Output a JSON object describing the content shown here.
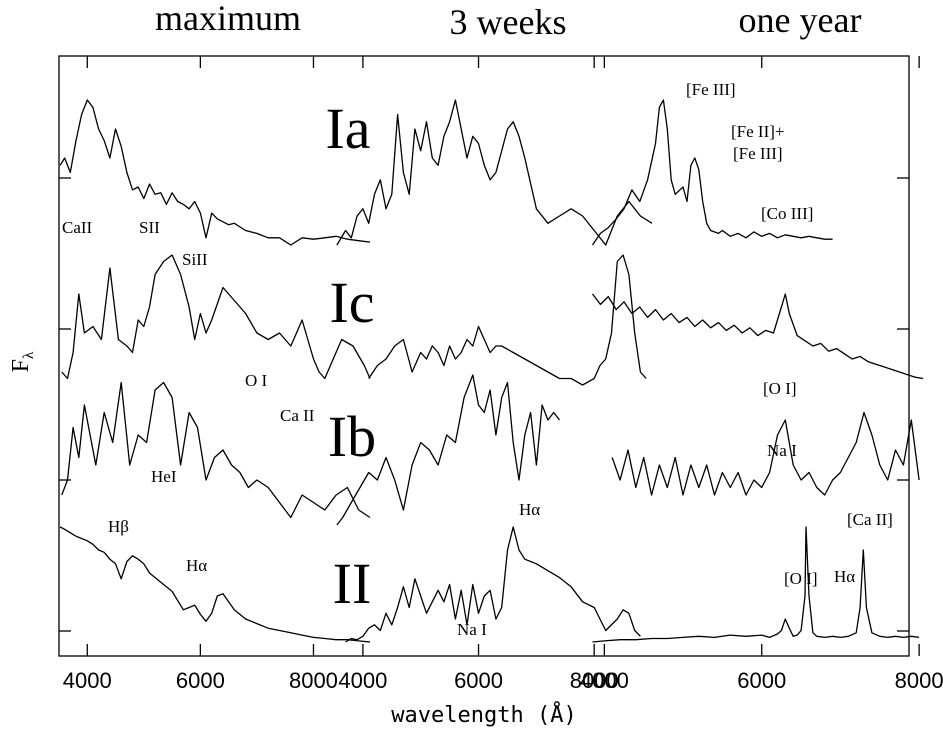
{
  "chart_data": {
    "type": "line",
    "xlabel": "wavelength (Å)",
    "ylabel_main": "F",
    "ylabel_sub": "λ",
    "grid": false,
    "columns": [
      {
        "title": "maximum",
        "xlim": [
          3500,
          9000
        ],
        "ticks": [
          4000,
          6000,
          8000
        ]
      },
      {
        "title": "3 weeks",
        "xlim": [
          3500,
          9000
        ],
        "ticks": [
          4000,
          6000,
          8000
        ]
      },
      {
        "title": "one year",
        "xlim": [
          3500,
          8100
        ],
        "ticks": [
          4000,
          6000,
          8000
        ]
      }
    ],
    "types": [
      {
        "name": "Ia"
      },
      {
        "name": "Ic"
      },
      {
        "name": "Ib"
      },
      {
        "name": "II"
      }
    ],
    "series": [
      {
        "type": "Ia",
        "col": 0,
        "x": [
          3520,
          3600,
          3700,
          3800,
          3900,
          4000,
          4100,
          4200,
          4300,
          4400,
          4500,
          4600,
          4700,
          4800,
          4900,
          5000,
          5100,
          5200,
          5300,
          5400,
          5500,
          5600,
          5700,
          5800,
          5900,
          6000,
          6100,
          6200,
          6300,
          6400,
          6500,
          6600,
          6800,
          7000,
          7200,
          7400,
          7600,
          7800,
          8000,
          8200,
          8400,
          8600,
          8800,
          9000
        ],
        "y": [
          0.55,
          0.6,
          0.5,
          0.72,
          0.9,
          1.0,
          0.95,
          0.8,
          0.72,
          0.6,
          0.8,
          0.68,
          0.5,
          0.38,
          0.4,
          0.32,
          0.42,
          0.35,
          0.36,
          0.28,
          0.36,
          0.3,
          0.28,
          0.25,
          0.3,
          0.22,
          0.05,
          0.22,
          0.18,
          0.16,
          0.14,
          0.15,
          0.1,
          0.08,
          0.05,
          0.05,
          0.0,
          0.05,
          0.04,
          0.05,
          0.06,
          0.04,
          0.03,
          0.02
        ]
      },
      {
        "type": "Ia",
        "col": 1,
        "x": [
          3550,
          3700,
          3800,
          3900,
          4000,
          4100,
          4200,
          4300,
          4400,
          4500,
          4600,
          4700,
          4800,
          4900,
          5000,
          5100,
          5200,
          5300,
          5400,
          5500,
          5600,
          5700,
          5800,
          5900,
          6000,
          6100,
          6200,
          6300,
          6400,
          6500,
          6600,
          6700,
          6800,
          7000,
          7200,
          7400,
          7600,
          7800,
          8000,
          8200,
          8400,
          8600,
          8800,
          9000
        ],
        "y": [
          0.0,
          0.1,
          0.05,
          0.2,
          0.25,
          0.15,
          0.35,
          0.45,
          0.25,
          0.35,
          0.9,
          0.5,
          0.35,
          0.8,
          0.65,
          0.85,
          0.6,
          0.55,
          0.75,
          0.85,
          1.0,
          0.8,
          0.6,
          0.75,
          0.7,
          0.55,
          0.45,
          0.5,
          0.65,
          0.8,
          0.85,
          0.75,
          0.6,
          0.25,
          0.15,
          0.2,
          0.25,
          0.2,
          0.1,
          0.0,
          0.2,
          0.3,
          0.2,
          0.15
        ]
      },
      {
        "type": "Ia",
        "col": 2,
        "x": [
          3850,
          3950,
          4050,
          4150,
          4250,
          4350,
          4450,
          4550,
          4650,
          4700,
          4750,
          4800,
          4850,
          4900,
          5000,
          5050,
          5100,
          5150,
          5200,
          5250,
          5300,
          5350,
          5450,
          5500,
          5600,
          5700,
          5800,
          5900,
          6000,
          6100,
          6200,
          6300,
          6400,
          6500,
          6600,
          6700,
          6800,
          6900
        ],
        "y": [
          0.0,
          0.08,
          0.12,
          0.18,
          0.25,
          0.38,
          0.3,
          0.45,
          0.7,
          0.95,
          1.0,
          0.8,
          0.45,
          0.35,
          0.4,
          0.3,
          0.55,
          0.6,
          0.52,
          0.3,
          0.15,
          0.1,
          0.08,
          0.1,
          0.06,
          0.08,
          0.05,
          0.09,
          0.06,
          0.08,
          0.05,
          0.07,
          0.06,
          0.05,
          0.06,
          0.05,
          0.04,
          0.04
        ]
      },
      {
        "type": "Ic",
        "col": 0,
        "x": [
          3550,
          3650,
          3750,
          3850,
          3950,
          4100,
          4250,
          4400,
          4550,
          4700,
          4800,
          4900,
          5000,
          5100,
          5200,
          5350,
          5500,
          5650,
          5800,
          5900,
          6000,
          6100,
          6200,
          6400,
          6600,
          6800,
          7000,
          7200,
          7400,
          7600,
          7700,
          7800,
          7900,
          8000,
          8100,
          8200,
          8300,
          8500,
          8700,
          8900,
          9000
        ],
        "y": [
          0.1,
          0.05,
          0.25,
          0.7,
          0.4,
          0.45,
          0.35,
          0.9,
          0.35,
          0.3,
          0.25,
          0.5,
          0.45,
          0.6,
          0.85,
          0.95,
          1.0,
          0.85,
          0.6,
          0.35,
          0.55,
          0.4,
          0.5,
          0.75,
          0.65,
          0.55,
          0.4,
          0.35,
          0.4,
          0.3,
          0.4,
          0.5,
          0.35,
          0.2,
          0.1,
          0.05,
          0.15,
          0.35,
          0.3,
          0.15,
          0.05
        ]
      },
      {
        "type": "Ic",
        "col": 1,
        "x": [
          4100,
          4250,
          4400,
          4550,
          4700,
          4850,
          5000,
          5100,
          5200,
          5300,
          5400,
          5500,
          5600,
          5700,
          5800,
          5900,
          6000,
          6100,
          6200,
          6300,
          6400,
          6600,
          6800,
          7000,
          7200,
          7400,
          7600,
          7800,
          8000,
          8100,
          8200,
          8300,
          8400,
          8500,
          8600,
          8700,
          8800,
          8900
        ],
        "y": [
          0.05,
          0.15,
          0.2,
          0.3,
          0.35,
          0.1,
          0.25,
          0.2,
          0.3,
          0.25,
          0.15,
          0.3,
          0.2,
          0.25,
          0.35,
          0.3,
          0.45,
          0.35,
          0.25,
          0.3,
          0.3,
          0.25,
          0.2,
          0.15,
          0.1,
          0.05,
          0.05,
          0.0,
          0.05,
          0.15,
          0.2,
          0.4,
          0.95,
          1.0,
          0.85,
          0.4,
          0.1,
          0.05
        ]
      },
      {
        "type": "Ic",
        "col": 2,
        "x": [
          3850,
          3950,
          4050,
          4150,
          4250,
          4350,
          4450,
          4550,
          4650,
          4750,
          4850,
          4950,
          5050,
          5150,
          5250,
          5350,
          5450,
          5550,
          5650,
          5750,
          5850,
          5950,
          6050,
          6150,
          6250,
          6300,
          6350,
          6450,
          6550,
          6650,
          6750,
          6850,
          6950,
          7050,
          7150,
          7250,
          7350,
          7450,
          7550,
          7650,
          7750,
          7850,
          7950,
          8050
        ],
        "y": [
          0.7,
          0.62,
          0.68,
          0.58,
          0.64,
          0.55,
          0.6,
          0.52,
          0.58,
          0.5,
          0.55,
          0.48,
          0.52,
          0.45,
          0.5,
          0.44,
          0.48,
          0.42,
          0.46,
          0.4,
          0.44,
          0.38,
          0.42,
          0.4,
          0.6,
          0.7,
          0.55,
          0.38,
          0.34,
          0.3,
          0.32,
          0.26,
          0.28,
          0.24,
          0.2,
          0.22,
          0.18,
          0.16,
          0.14,
          0.12,
          0.1,
          0.08,
          0.06,
          0.05
        ]
      },
      {
        "type": "Ib",
        "col": 0,
        "x": [
          3550,
          3650,
          3750,
          3850,
          3950,
          4050,
          4150,
          4300,
          4450,
          4600,
          4750,
          4900,
          5050,
          5200,
          5350,
          5500,
          5650,
          5800,
          5950,
          6100,
          6250,
          6400,
          6550,
          6700,
          6850,
          7000,
          7200,
          7400,
          7600,
          7800,
          8000,
          8200,
          8400,
          8600,
          8800,
          9000
        ],
        "y": [
          0.2,
          0.3,
          0.65,
          0.45,
          0.8,
          0.6,
          0.4,
          0.75,
          0.55,
          0.95,
          0.4,
          0.6,
          0.55,
          0.9,
          0.95,
          0.85,
          0.4,
          0.75,
          0.65,
          0.3,
          0.45,
          0.5,
          0.4,
          0.35,
          0.25,
          0.3,
          0.25,
          0.15,
          0.05,
          0.2,
          0.15,
          0.1,
          0.2,
          0.25,
          0.1,
          0.05
        ]
      },
      {
        "type": "Ib",
        "col": 1,
        "x": [
          3550,
          3650,
          3800,
          3950,
          4100,
          4250,
          4400,
          4550,
          4700,
          4850,
          5000,
          5150,
          5300,
          5450,
          5600,
          5750,
          5900,
          6000,
          6100,
          6200,
          6300,
          6400,
          6500,
          6600,
          6700,
          6800,
          6900,
          7000,
          7100,
          7200,
          7300,
          7400
        ],
        "y": [
          0.0,
          0.05,
          0.15,
          0.25,
          0.35,
          0.3,
          0.45,
          0.3,
          0.1,
          0.4,
          0.55,
          0.5,
          0.4,
          0.6,
          0.55,
          0.85,
          1.0,
          0.8,
          0.75,
          0.9,
          0.6,
          0.85,
          0.95,
          0.55,
          0.3,
          0.6,
          0.75,
          0.4,
          0.8,
          0.7,
          0.75,
          0.7
        ]
      },
      {
        "type": "Ib",
        "col": 2,
        "x": [
          4100,
          4200,
          4300,
          4400,
          4500,
          4600,
          4700,
          4800,
          4900,
          5000,
          5100,
          5200,
          5300,
          5400,
          5500,
          5600,
          5700,
          5800,
          5900,
          6000,
          6100,
          6200,
          6300,
          6400,
          6500,
          6600,
          6700,
          6800,
          6900,
          7000,
          7100,
          7200,
          7300,
          7400,
          7500,
          7600,
          7700,
          7800,
          7900,
          8000
        ],
        "y": [
          0.45,
          0.3,
          0.5,
          0.25,
          0.45,
          0.2,
          0.4,
          0.25,
          0.45,
          0.2,
          0.4,
          0.25,
          0.4,
          0.2,
          0.35,
          0.25,
          0.35,
          0.2,
          0.3,
          0.25,
          0.35,
          0.6,
          0.7,
          0.4,
          0.3,
          0.35,
          0.25,
          0.2,
          0.3,
          0.35,
          0.45,
          0.55,
          0.75,
          0.6,
          0.4,
          0.3,
          0.5,
          0.4,
          0.7,
          0.3
        ]
      },
      {
        "type": "II",
        "col": 0,
        "x": [
          3520,
          3600,
          3700,
          3800,
          3900,
          4000,
          4100,
          4200,
          4300,
          4400,
          4500,
          4600,
          4700,
          4800,
          4900,
          5000,
          5100,
          5200,
          5300,
          5400,
          5500,
          5600,
          5700,
          5800,
          5900,
          6000,
          6100,
          6200,
          6300,
          6400,
          6500,
          6600,
          6700,
          6800,
          7000,
          7200,
          7400,
          7600,
          7800,
          8000,
          8200,
          8400,
          8600,
          8800,
          9000
        ],
        "y": [
          1.0,
          0.98,
          0.95,
          0.92,
          0.9,
          0.88,
          0.85,
          0.8,
          0.78,
          0.72,
          0.68,
          0.55,
          0.7,
          0.75,
          0.72,
          0.68,
          0.6,
          0.56,
          0.52,
          0.48,
          0.44,
          0.36,
          0.28,
          0.3,
          0.32,
          0.24,
          0.18,
          0.25,
          0.4,
          0.42,
          0.35,
          0.28,
          0.24,
          0.2,
          0.16,
          0.12,
          0.1,
          0.08,
          0.06,
          0.04,
          0.03,
          0.02,
          0.02,
          0.01,
          0.0
        ]
      },
      {
        "type": "II",
        "col": 1,
        "x": [
          3700,
          3800,
          3900,
          4000,
          4100,
          4200,
          4300,
          4400,
          4500,
          4600,
          4700,
          4800,
          4900,
          5000,
          5100,
          5200,
          5300,
          5400,
          5500,
          5600,
          5700,
          5800,
          5900,
          6000,
          6100,
          6200,
          6300,
          6400,
          6500,
          6600,
          6700,
          6800,
          6900,
          7000,
          7200,
          7400,
          7600,
          7800,
          8000,
          8200,
          8400,
          8500,
          8600,
          8700,
          8800
        ],
        "y": [
          0.0,
          0.03,
          0.02,
          0.05,
          0.12,
          0.15,
          0.1,
          0.25,
          0.15,
          0.3,
          0.48,
          0.3,
          0.55,
          0.4,
          0.25,
          0.35,
          0.45,
          0.35,
          0.5,
          0.2,
          0.45,
          0.15,
          0.5,
          0.25,
          0.4,
          0.45,
          0.2,
          0.3,
          0.8,
          1.0,
          0.8,
          0.72,
          0.7,
          0.68,
          0.62,
          0.56,
          0.48,
          0.35,
          0.3,
          0.1,
          0.2,
          0.28,
          0.25,
          0.1,
          0.05
        ]
      },
      {
        "type": "II",
        "col": 2,
        "x": [
          3850,
          4000,
          4200,
          4400,
          4600,
          4800,
          5000,
          5200,
          5400,
          5600,
          5800,
          6000,
          6100,
          6200,
          6250,
          6300,
          6350,
          6400,
          6450,
          6500,
          6550,
          6563,
          6600,
          6650,
          6700,
          6800,
          6900,
          7000,
          7100,
          7200,
          7250,
          7291,
          7330,
          7400,
          7500,
          7600,
          7700,
          7800,
          7900,
          8000
        ],
        "y": [
          0.0,
          0.01,
          0.02,
          0.02,
          0.03,
          0.03,
          0.04,
          0.05,
          0.04,
          0.06,
          0.05,
          0.06,
          0.04,
          0.07,
          0.1,
          0.2,
          0.12,
          0.05,
          0.06,
          0.1,
          0.4,
          1.0,
          0.4,
          0.08,
          0.05,
          0.04,
          0.05,
          0.04,
          0.05,
          0.08,
          0.3,
          0.8,
          0.3,
          0.08,
          0.05,
          0.04,
          0.05,
          0.04,
          0.05,
          0.04
        ]
      }
    ],
    "annotations": [
      {
        "type": "Ia",
        "col": 0,
        "text": "CaII"
      },
      {
        "type": "Ia",
        "col": 0,
        "text": "SII"
      },
      {
        "type": "Ia",
        "col": 0,
        "text": "SiII"
      },
      {
        "type": "Ia",
        "col": 2,
        "text": "[Fe III]"
      },
      {
        "type": "Ia",
        "col": 2,
        "text": "[Fe II]+"
      },
      {
        "type": "Ia",
        "col": 2,
        "text": "[Fe III]"
      },
      {
        "type": "Ia",
        "col": 2,
        "text": "[Co III]"
      },
      {
        "type": "Ic",
        "col": 0,
        "text": "O I"
      },
      {
        "type": "Ic",
        "col": 0,
        "text": "Ca II"
      },
      {
        "type": "Ic",
        "col": 2,
        "text": "[O I]"
      },
      {
        "type": "Ib",
        "col": 0,
        "text": "HeI"
      },
      {
        "type": "Ib",
        "col": 2,
        "text": "Na I"
      },
      {
        "type": "II",
        "col": 0,
        "text": "Hβ"
      },
      {
        "type": "II",
        "col": 0,
        "text": "Hα"
      },
      {
        "type": "II",
        "col": 1,
        "text": "Na I"
      },
      {
        "type": "II",
        "col": 1,
        "text": "Hα"
      },
      {
        "type": "II",
        "col": 2,
        "text": "[Ca II]"
      },
      {
        "type": "II",
        "col": 2,
        "text": "[O I]"
      },
      {
        "type": "II",
        "col": 2,
        "text": "Hα"
      }
    ]
  }
}
